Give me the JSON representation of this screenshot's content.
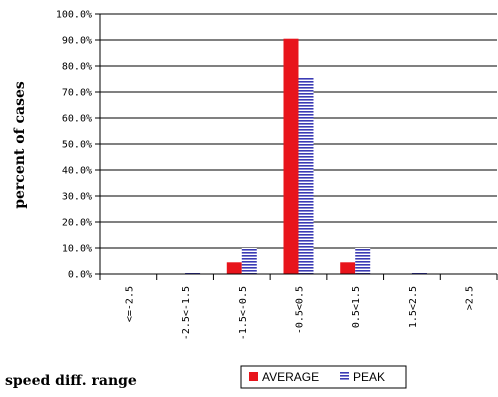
{
  "chart_data": {
    "type": "bar",
    "title": "",
    "xlabel": "speed diff. range",
    "ylabel": "percent of cases",
    "categories": [
      "<=-2.5",
      "-2.5<-1.5",
      "-1.5<-0.5",
      "-0.5<0.5",
      "0.5<1.5",
      "1.5<2.5",
      ">2.5"
    ],
    "series": [
      {
        "name": "AVERAGE",
        "color": "#e8141b",
        "values": [
          0.0,
          0.0,
          4.5,
          90.5,
          4.5,
          0.0,
          0.0
        ]
      },
      {
        "name": "PEAK",
        "color": "#3b3bb5",
        "pattern": "horizontal-stripes",
        "values": [
          0.0,
          0.5,
          10.0,
          75.5,
          10.0,
          0.5,
          0.0
        ]
      }
    ],
    "ylim": [
      0,
      100
    ],
    "yticks": [
      "0.0%",
      "10.0%",
      "20.0%",
      "30.0%",
      "40.0%",
      "50.0%",
      "60.0%",
      "70.0%",
      "80.0%",
      "90.0%",
      "100.0%"
    ],
    "grid": "horizontal",
    "legend_position": "bottom-right"
  }
}
